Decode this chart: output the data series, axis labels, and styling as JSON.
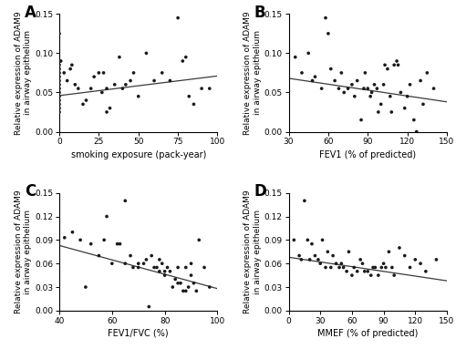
{
  "panel_A": {
    "label": "A",
    "xlabel": "smoking exposure (pack-year)",
    "ylabel": "Relative expression of ADAM9\nin airway epithelium",
    "xlim": [
      0,
      100
    ],
    "ylim": [
      0,
      0.15
    ],
    "xticks": [
      0,
      25,
      50,
      75,
      100
    ],
    "yticks": [
      0.0,
      0.05,
      0.1,
      0.15
    ],
    "ytick_labels": [
      "0.00",
      "0.05",
      "0.10",
      "0.15"
    ],
    "x": [
      0,
      0,
      0,
      0,
      0,
      0,
      0,
      0,
      0,
      0,
      0,
      0,
      0,
      0,
      0,
      1,
      3,
      5,
      7,
      8,
      10,
      12,
      15,
      17,
      20,
      22,
      25,
      27,
      28,
      30,
      30,
      32,
      35,
      38,
      40,
      42,
      45,
      47,
      50,
      55,
      60,
      65,
      70,
      75,
      78,
      80,
      82,
      85,
      90,
      95
    ],
    "y": [
      0.125,
      0.09,
      0.085,
      0.08,
      0.075,
      0.07,
      0.065,
      0.06,
      0.055,
      0.05,
      0.045,
      0.04,
      0.035,
      0.03,
      0.025,
      0.09,
      0.075,
      0.065,
      0.08,
      0.085,
      0.06,
      0.055,
      0.035,
      0.04,
      0.055,
      0.07,
      0.075,
      0.05,
      0.075,
      0.055,
      0.025,
      0.03,
      0.06,
      0.095,
      0.055,
      0.06,
      0.065,
      0.075,
      0.045,
      0.1,
      0.065,
      0.075,
      0.065,
      0.145,
      0.09,
      0.095,
      0.045,
      0.035,
      0.055,
      0.055
    ],
    "line_x": [
      0,
      100
    ],
    "line_y": [
      0.046,
      0.071
    ]
  },
  "panel_B": {
    "label": "B",
    "xlabel": "FEV1 (% of predicted)",
    "ylabel": "Relative expression of ADAM9\nin airway epithelium",
    "xlim": [
      30,
      150
    ],
    "ylim": [
      0,
      0.15
    ],
    "xticks": [
      30,
      60,
      90,
      120,
      150
    ],
    "yticks": [
      0.0,
      0.05,
      0.1,
      0.15
    ],
    "ytick_labels": [
      "0.00",
      "0.05",
      "0.10",
      "0.15"
    ],
    "x": [
      35,
      40,
      45,
      48,
      50,
      55,
      58,
      60,
      62,
      65,
      68,
      70,
      72,
      75,
      78,
      80,
      82,
      85,
      87,
      88,
      90,
      92,
      93,
      95,
      97,
      98,
      100,
      102,
      103,
      105,
      107,
      108,
      110,
      112,
      113,
      115,
      118,
      120,
      122,
      125,
      127,
      130,
      132,
      135,
      140
    ],
    "y": [
      0.095,
      0.075,
      0.1,
      0.065,
      0.07,
      0.055,
      0.145,
      0.125,
      0.08,
      0.065,
      0.055,
      0.075,
      0.05,
      0.055,
      0.06,
      0.045,
      0.065,
      0.015,
      0.055,
      0.075,
      0.055,
      0.045,
      0.05,
      0.06,
      0.055,
      0.025,
      0.035,
      0.06,
      0.085,
      0.08,
      0.045,
      0.025,
      0.085,
      0.09,
      0.085,
      0.05,
      0.03,
      0.045,
      0.06,
      0.015,
      0.0,
      0.065,
      0.035,
      0.075,
      0.055
    ],
    "line_x": [
      30,
      150
    ],
    "line_y": [
      0.068,
      0.038
    ]
  },
  "panel_C": {
    "label": "C",
    "xlabel": "FEV1/FVC (%)",
    "ylabel": "Relative expression of ADAM9\nin airway epithelium",
    "xlim": [
      40,
      100
    ],
    "ylim": [
      0,
      0.15
    ],
    "xticks": [
      40,
      60,
      80,
      100
    ],
    "yticks": [
      0.0,
      0.03,
      0.06,
      0.09,
      0.12,
      0.15
    ],
    "ytick_labels": [
      "0.00",
      "0.03",
      "0.06",
      "0.09",
      "0.12",
      "0.15"
    ],
    "x": [
      42,
      45,
      48,
      50,
      52,
      55,
      57,
      58,
      60,
      62,
      63,
      65,
      65,
      67,
      68,
      70,
      70,
      72,
      73,
      74,
      75,
      76,
      77,
      78,
      78,
      79,
      80,
      80,
      81,
      82,
      83,
      84,
      85,
      85,
      86,
      87,
      88,
      88,
      89,
      90,
      90,
      91,
      92,
      93,
      95,
      97
    ],
    "y": [
      0.093,
      0.1,
      0.09,
      0.03,
      0.085,
      0.07,
      0.09,
      0.12,
      0.06,
      0.085,
      0.085,
      0.14,
      0.06,
      0.07,
      0.055,
      0.06,
      0.055,
      0.06,
      0.065,
      0.005,
      0.07,
      0.055,
      0.055,
      0.065,
      0.05,
      0.06,
      0.05,
      0.045,
      0.055,
      0.05,
      0.03,
      0.04,
      0.055,
      0.035,
      0.035,
      0.025,
      0.055,
      0.025,
      0.03,
      0.045,
      0.06,
      0.035,
      0.025,
      0.09,
      0.055,
      0.03
    ],
    "line_x": [
      40,
      100
    ],
    "line_y": [
      0.083,
      0.028
    ]
  },
  "panel_D": {
    "label": "D",
    "xlabel": "MMEF (% of predicted)",
    "ylabel": "Relative expression of ADAM9\nin airway epithelium",
    "xlim": [
      0,
      150
    ],
    "ylim": [
      0,
      0.15
    ],
    "xticks": [
      0,
      30,
      60,
      90,
      120,
      150
    ],
    "yticks": [
      0.0,
      0.03,
      0.06,
      0.09,
      0.12,
      0.15
    ],
    "ytick_labels": [
      "0.00",
      "0.03",
      "0.06",
      "0.09",
      "0.12",
      "0.15"
    ],
    "x": [
      5,
      10,
      12,
      15,
      18,
      20,
      22,
      25,
      28,
      30,
      32,
      35,
      37,
      40,
      42,
      45,
      48,
      50,
      52,
      55,
      57,
      60,
      62,
      65,
      68,
      70,
      72,
      75,
      78,
      80,
      82,
      85,
      88,
      90,
      92,
      95,
      98,
      100,
      105,
      110,
      115,
      120,
      125,
      130,
      140
    ],
    "y": [
      0.09,
      0.07,
      0.065,
      0.14,
      0.09,
      0.065,
      0.085,
      0.07,
      0.065,
      0.06,
      0.09,
      0.055,
      0.075,
      0.055,
      0.07,
      0.06,
      0.055,
      0.06,
      0.055,
      0.05,
      0.075,
      0.045,
      0.055,
      0.05,
      0.065,
      0.06,
      0.05,
      0.05,
      0.045,
      0.055,
      0.055,
      0.045,
      0.055,
      0.06,
      0.055,
      0.075,
      0.055,
      0.045,
      0.08,
      0.07,
      0.055,
      0.065,
      0.06,
      0.05,
      0.065
    ],
    "line_x": [
      0,
      150
    ],
    "line_y": [
      0.068,
      0.038
    ]
  },
  "dot_color": "#1a1a1a",
  "line_color": "#3a3a3a",
  "dot_size": 7,
  "xlabel_fontsize": 7,
  "ylabel_fontsize": 6.5,
  "panel_label_fontsize": 12,
  "tick_fontsize": 6.5,
  "bg_color": "#ffffff"
}
